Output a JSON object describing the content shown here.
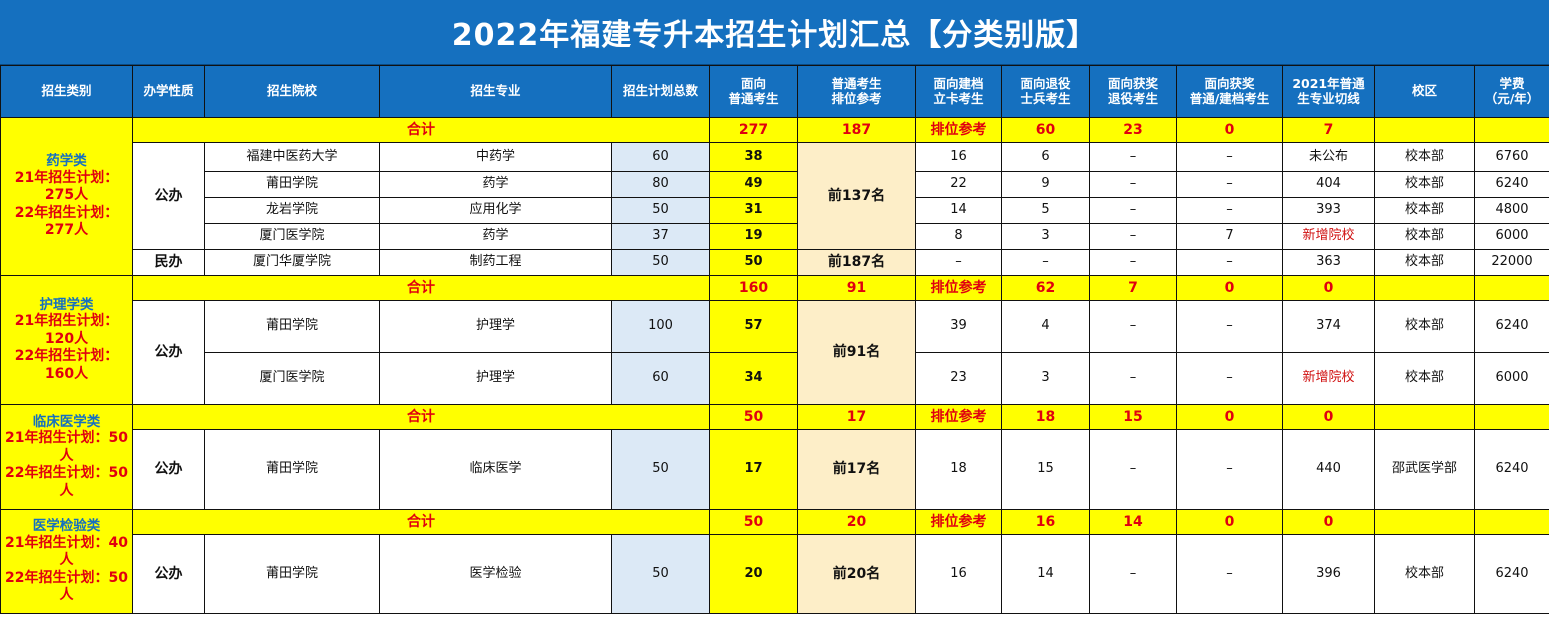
{
  "title": "2022年福建专升本招生计划汇总【分类别版】",
  "headers": [
    "招生类别",
    "办学性质",
    "招生院校",
    "招生专业",
    "招生计划总数",
    "面向\n普通考生",
    "普通考生\n排位参考",
    "面向建档\n立卡考生",
    "面向退役\n士兵考生",
    "面向获奖\n退役考生",
    "面向获奖\n普通/建档考生",
    "2021年普通\n生专业切线",
    "校区",
    "学费\n（元/年）"
  ],
  "groups": [
    {
      "category": "药学类",
      "plan21": "21年招生计划：275人",
      "plan22": "22年招生计划：277人",
      "sum": {
        "label": "合计",
        "total": "277",
        "general": "187",
        "rank": "排位参考",
        "archive": "60",
        "veteran": "23",
        "award_vet": "0",
        "award_gen": "7"
      },
      "ownership": [
        "公办",
        "民办"
      ],
      "ranks": [
        "前137名",
        "前187名"
      ],
      "rows": [
        {
          "school": "福建中医药大学",
          "major": "中药学",
          "total": "60",
          "general": "38",
          "archive": "16",
          "veteran": "6",
          "award_vet": "–",
          "award_gen": "–",
          "cutoff": "未公布",
          "campus": "校本部",
          "fee": "6760"
        },
        {
          "school": "莆田学院",
          "major": "药学",
          "total": "80",
          "general": "49",
          "archive": "22",
          "veteran": "9",
          "award_vet": "–",
          "award_gen": "–",
          "cutoff": "404",
          "campus": "校本部",
          "fee": "6240"
        },
        {
          "school": "龙岩学院",
          "major": "应用化学",
          "total": "50",
          "general": "31",
          "archive": "14",
          "veteran": "5",
          "award_vet": "–",
          "award_gen": "–",
          "cutoff": "393",
          "campus": "校本部",
          "fee": "4800"
        },
        {
          "school": "厦门医学院",
          "major": "药学",
          "total": "37",
          "general": "19",
          "archive": "8",
          "veteran": "3",
          "award_vet": "–",
          "award_gen": "7",
          "cutoff": "新增院校",
          "campus": "校本部",
          "fee": "6000"
        },
        {
          "school": "厦门华厦学院",
          "major": "制药工程",
          "total": "50",
          "general": "50",
          "archive": "–",
          "veteran": "–",
          "award_vet": "–",
          "award_gen": "–",
          "cutoff": "363",
          "campus": "校本部",
          "fee": "22000"
        }
      ]
    },
    {
      "category": "护理学类",
      "plan21": "21年招生计划：120人",
      "plan22": "22年招生计划：160人",
      "sum": {
        "label": "合计",
        "total": "160",
        "general": "91",
        "rank": "排位参考",
        "archive": "62",
        "veteran": "7",
        "award_vet": "0",
        "award_gen": "0"
      },
      "ownership": [
        "公办"
      ],
      "ranks": [
        "前91名"
      ],
      "rows": [
        {
          "school": "莆田学院",
          "major": "护理学",
          "total": "100",
          "general": "57",
          "archive": "39",
          "veteran": "4",
          "award_vet": "–",
          "award_gen": "–",
          "cutoff": "374",
          "campus": "校本部",
          "fee": "6240"
        },
        {
          "school": "厦门医学院",
          "major": "护理学",
          "total": "60",
          "general": "34",
          "archive": "23",
          "veteran": "3",
          "award_vet": "–",
          "award_gen": "–",
          "cutoff": "新增院校",
          "campus": "校本部",
          "fee": "6000"
        }
      ]
    },
    {
      "category": "临床医学类",
      "plan21": "21年招生计划：50人",
      "plan22": "22年招生计划：50人",
      "sum": {
        "label": "合计",
        "total": "50",
        "general": "17",
        "rank": "排位参考",
        "archive": "18",
        "veteran": "15",
        "award_vet": "0",
        "award_gen": "0"
      },
      "ownership": [
        "公办"
      ],
      "ranks": [
        "前17名"
      ],
      "rows": [
        {
          "school": "莆田学院",
          "major": "临床医学",
          "total": "50",
          "general": "17",
          "archive": "18",
          "veteran": "15",
          "award_vet": "–",
          "award_gen": "–",
          "cutoff": "440",
          "campus": "邵武医学部",
          "fee": "6240"
        }
      ]
    },
    {
      "category": "医学检验类",
      "plan21": "21年招生计划：40人",
      "plan22": "22年招生计划：50人",
      "sum": {
        "label": "合计",
        "total": "50",
        "general": "20",
        "rank": "排位参考",
        "archive": "16",
        "veteran": "14",
        "award_vet": "0",
        "award_gen": "0"
      },
      "ownership": [
        "公办"
      ],
      "ranks": [
        "前20名"
      ],
      "rows": [
        {
          "school": "莆田学院",
          "major": "医学检验",
          "total": "50",
          "general": "20",
          "archive": "16",
          "veteran": "14",
          "award_vet": "–",
          "award_gen": "–",
          "cutoff": "396",
          "campus": "校本部",
          "fee": "6240"
        }
      ]
    }
  ]
}
